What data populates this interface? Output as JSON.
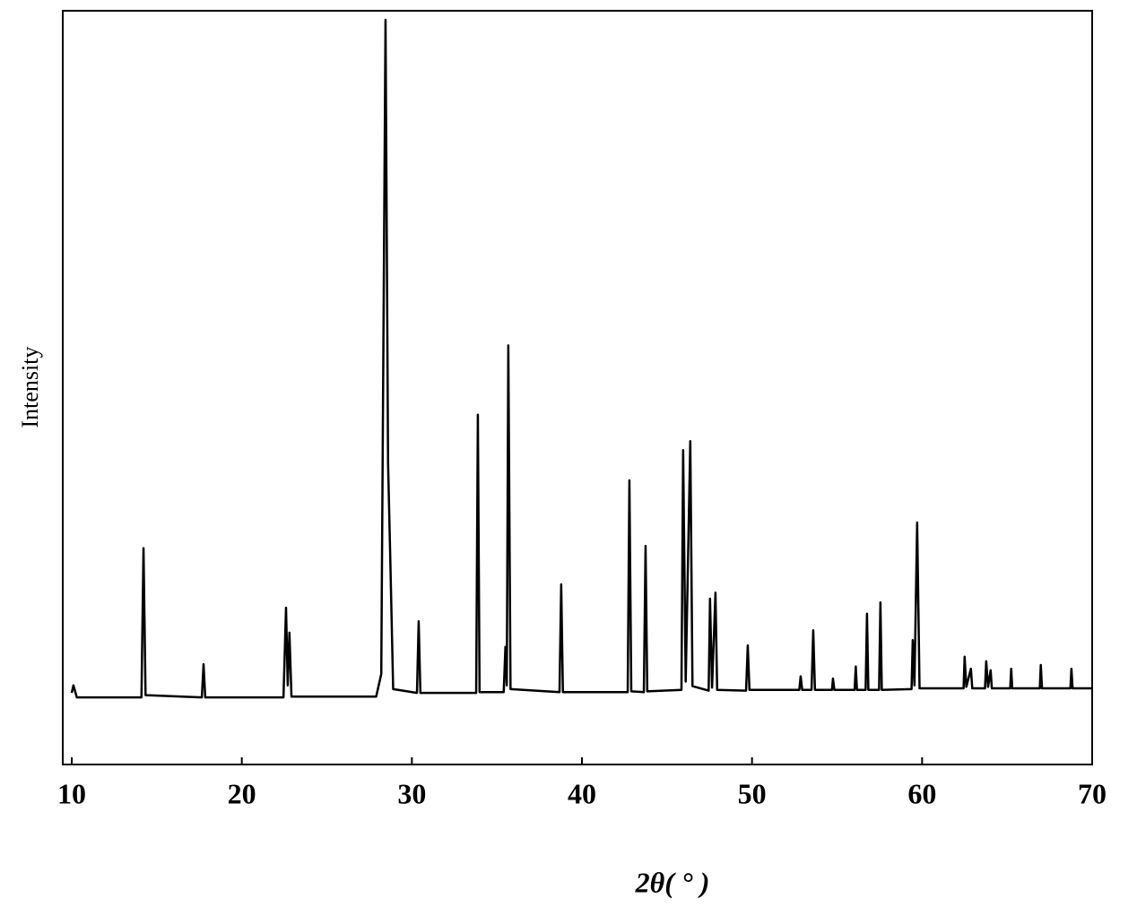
{
  "chart_data": {
    "type": "line",
    "x_label": "2θ( ° )",
    "y_label": "Intensity",
    "color": "#000000",
    "xlim": [
      10,
      70
    ],
    "xticks": [
      10,
      20,
      30,
      40,
      50,
      60,
      70
    ],
    "ylim": [
      0,
      100
    ],
    "x": [
      10,
      10.1,
      10.3,
      14.1,
      14.22,
      14.34,
      17.65,
      17.75,
      17.85,
      22.45,
      22.6,
      22.7,
      22.8,
      22.92,
      27.9,
      28.2,
      28.45,
      28.6,
      28.72,
      28.9,
      30.3,
      30.4,
      30.5,
      33.78,
      33.88,
      33.98,
      35.4,
      35.5,
      35.58,
      35.67,
      35.8,
      38.68,
      38.78,
      38.88,
      42.69,
      42.79,
      42.9,
      43.64,
      43.74,
      43.84,
      45.85,
      45.95,
      46.1,
      46.37,
      46.5,
      47.45,
      47.53,
      47.65,
      47.85,
      47.95,
      49.65,
      49.75,
      49.85,
      52.78,
      52.86,
      52.95,
      53.5,
      53.6,
      53.7,
      54.7,
      54.76,
      54.84,
      56.03,
      56.1,
      56.17,
      56.68,
      56.76,
      56.84,
      57.47,
      57.55,
      57.63,
      59.38,
      59.45,
      59.55,
      59.71,
      59.85,
      62.44,
      62.5,
      62.6,
      62.87,
      62.95,
      63.7,
      63.77,
      63.88,
      64.03,
      64.1,
      65.18,
      65.24,
      65.3,
      66.92,
      66.98,
      67.05,
      68.72,
      68.78,
      68.85,
      70
    ],
    "values": [
      9.5,
      10.5,
      8.9,
      8.9,
      28.7,
      9.2,
      8.9,
      13.3,
      8.9,
      8.9,
      20.8,
      10.5,
      17.5,
      9.0,
      9.0,
      12,
      98.8,
      40,
      28.3,
      10,
      9.5,
      19.0,
      9.5,
      9.5,
      46.4,
      9.6,
      9.6,
      15.6,
      10.5,
      55.6,
      10.0,
      9.6,
      23.9,
      9.6,
      9.6,
      37.7,
      9.7,
      9.6,
      29.0,
      9.7,
      9.9,
      41.7,
      11,
      42.9,
      10.4,
      9.8,
      22.0,
      10.2,
      22.8,
      9.9,
      9.8,
      15.8,
      9.9,
      9.9,
      11.7,
      9.9,
      9.9,
      17.8,
      9.9,
      9.9,
      11.4,
      9.9,
      9.9,
      13.0,
      9.9,
      9.9,
      20.0,
      9.9,
      9.9,
      21.5,
      9.9,
      10,
      16.5,
      10.5,
      32.1,
      10.1,
      10.1,
      14.3,
      10.3,
      12.7,
      10.1,
      10.1,
      13.7,
      10.3,
      12.5,
      10.1,
      10.1,
      12.7,
      10.1,
      10.1,
      13.2,
      10.1,
      10.1,
      12.7,
      10.1,
      10.1
    ]
  }
}
